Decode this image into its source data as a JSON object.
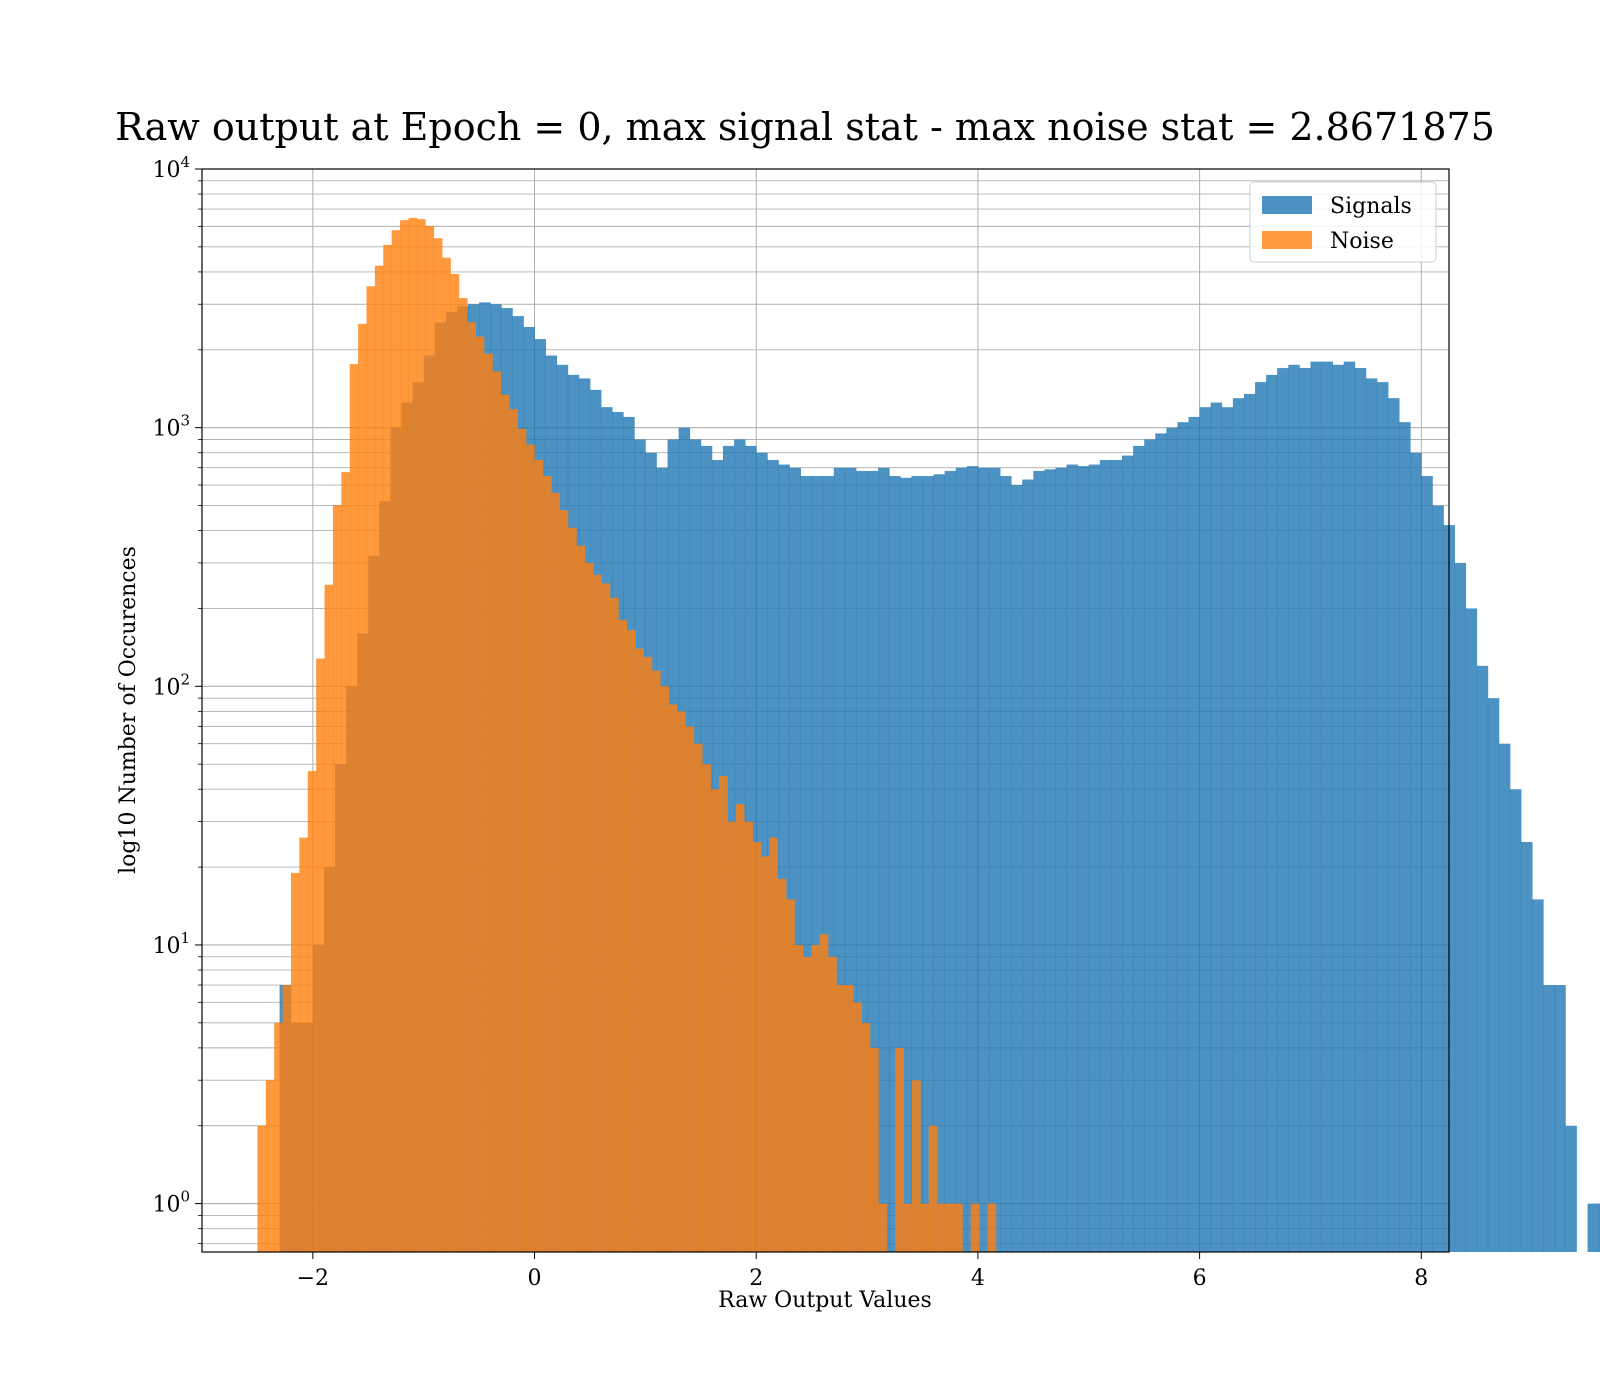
{
  "chart_data": {
    "type": "histogram",
    "title": "Raw output at Epoch = 0, max signal stat - max noise stat = 2.8671875",
    "xlabel": "Raw Output Values",
    "ylabel": "log10 Number of Occurences",
    "xlim": [
      -3.0,
      8.25
    ],
    "ylim": [
      0.65,
      10000
    ],
    "yscale": "log",
    "grid": true,
    "legend_position": "upper-right",
    "x_ticks": [
      {
        "value": -2,
        "label": "−2"
      },
      {
        "value": 0,
        "label": "0"
      },
      {
        "value": 2,
        "label": "2"
      },
      {
        "value": 4,
        "label": "4"
      },
      {
        "value": 6,
        "label": "6"
      },
      {
        "value": 8,
        "label": "8"
      }
    ],
    "y_ticks": [
      {
        "value": 1,
        "base": "10",
        "exp": "0"
      },
      {
        "value": 10,
        "base": "10",
        "exp": "1"
      },
      {
        "value": 100,
        "base": "10",
        "exp": "2"
      },
      {
        "value": 1000,
        "base": "10",
        "exp": "3"
      },
      {
        "value": 10000,
        "base": "10",
        "exp": "4"
      }
    ],
    "series": [
      {
        "name": "Signals",
        "color": "#1f77b4",
        "opacity": 0.8,
        "bin_start": -2.3,
        "bin_width": 0.1,
        "counts": [
          7,
          5,
          5,
          10,
          20,
          50,
          100,
          160,
          320,
          520,
          1000,
          1250,
          1500,
          1900,
          2550,
          2800,
          2950,
          3000,
          3050,
          3000,
          2900,
          2700,
          2450,
          2200,
          1900,
          1750,
          1600,
          1550,
          1400,
          1200,
          1150,
          1100,
          900,
          800,
          700,
          900,
          1000,
          900,
          850,
          750,
          850,
          900,
          850,
          800,
          750,
          720,
          700,
          650,
          650,
          650,
          700,
          700,
          680,
          680,
          700,
          650,
          640,
          650,
          650,
          660,
          680,
          700,
          710,
          700,
          700,
          650,
          600,
          630,
          680,
          690,
          700,
          720,
          710,
          720,
          750,
          750,
          780,
          850,
          900,
          950,
          1000,
          1050,
          1100,
          1200,
          1250,
          1200,
          1300,
          1350,
          1500,
          1600,
          1700,
          1750,
          1700,
          1800,
          1800,
          1750,
          1800,
          1700,
          1550,
          1500,
          1300,
          1050,
          800,
          650,
          500,
          420,
          300,
          200,
          120,
          90,
          60,
          40,
          25,
          15,
          7,
          7,
          2,
          0,
          1,
          1
        ]
      },
      {
        "name": "Noise",
        "color": "#ff7f0e",
        "opacity": 0.8,
        "bin_start": -2.5,
        "bin_width": 0.0757,
        "counts": [
          2,
          3,
          5,
          7,
          19,
          26,
          47,
          128,
          247,
          502,
          673,
          1760,
          2520,
          3520,
          4230,
          5090,
          5800,
          6340,
          6470,
          6400,
          6030,
          5400,
          4540,
          3930,
          3170,
          2560,
          2250,
          1930,
          1650,
          1340,
          1180,
          990,
          860,
          750,
          650,
          560,
          480,
          410,
          350,
          300,
          270,
          250,
          220,
          180,
          165,
          140,
          130,
          115,
          100,
          85,
          80,
          70,
          60,
          50,
          40,
          45,
          30,
          35,
          30,
          25,
          22,
          26,
          18,
          15,
          10,
          9,
          10,
          11,
          9,
          7,
          7,
          6,
          5,
          4,
          1,
          0,
          4,
          1,
          3,
          1,
          2,
          1,
          1,
          1,
          0,
          1,
          0,
          1
        ]
      }
    ]
  }
}
